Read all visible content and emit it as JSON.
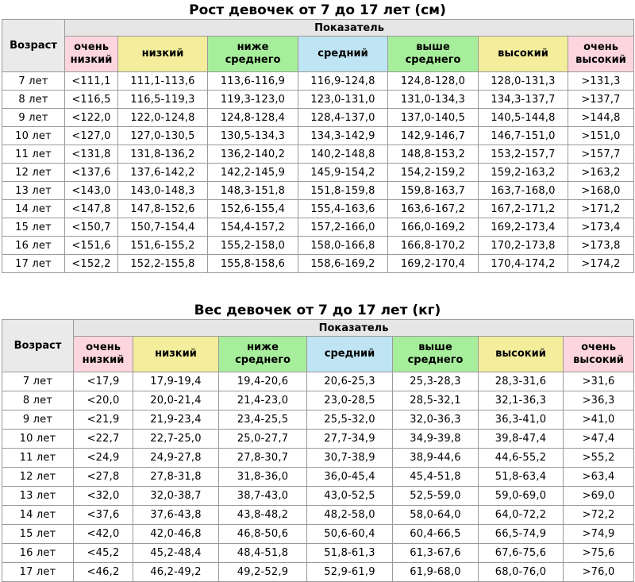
{
  "height_table": {
    "title": "Рост девочек от 7 до 17 лет (см)",
    "age_header": "Возраст",
    "group_header": "Показатель",
    "categories": [
      "очень низкий",
      "низкий",
      "ниже среднего",
      "средний",
      "выше среднего",
      "высокий",
      "очень высокий"
    ],
    "rows": [
      [
        "7 лет",
        "<111,1",
        "111,1-113,6",
        "113,6-116,9",
        "116,9-124,8",
        "124,8-128,0",
        "128,0-131,3",
        ">131,3"
      ],
      [
        "8 лет",
        "<116,5",
        "116,5-119,3",
        "119,3-123,0",
        "123,0-131,0",
        "131,0-134,3",
        "134,3-137,7",
        ">137,7"
      ],
      [
        "9 лет",
        "<122,0",
        "122,0-124,8",
        "124,8-128,4",
        "128,4-137,0",
        "137,0-140,5",
        "140,5-144,8",
        ">144,8"
      ],
      [
        "10 лет",
        "<127,0",
        "127,0-130,5",
        "130,5-134,3",
        "134,3-142,9",
        "142,9-146,7",
        "146,7-151,0",
        ">151,0"
      ],
      [
        "11 лет",
        "<131,8",
        "131,8-136,2",
        "136,2-140,2",
        "140,2-148,8",
        "148,8-153,2",
        "153,2-157,7",
        ">157,7"
      ],
      [
        "12 лет",
        "<137,6",
        "137,6-142,2",
        "142,2-145,9",
        "145,9-154,2",
        "154,2-159,2",
        "159,2-163,2",
        ">163,2"
      ],
      [
        "13 лет",
        "<143,0",
        "143,0-148,3",
        "148,3-151,8",
        "151,8-159,8",
        "159,8-163,7",
        "163,7-168,0",
        ">168,0"
      ],
      [
        "14 лет",
        "<147,8",
        "147,8-152,6",
        "152,6-155,4",
        "155,4-163,6",
        "163,6-167,2",
        "167,2-171,2",
        ">171,2"
      ],
      [
        "15 лет",
        "<150,7",
        "150,7-154,4",
        "154,4-157,2",
        "157,2-166,0",
        "166,0-169,2",
        "169,2-173,4",
        ">173,4"
      ],
      [
        "16 лет",
        "<151,6",
        "151,6-155,2",
        "155,2-158,0",
        "158,0-166,8",
        "166,8-170,2",
        "170,2-173,8",
        ">173,8"
      ],
      [
        "17 лет",
        "<152,2",
        "152,2-155,8",
        "155,8-158,6",
        "158,6-169,2",
        "169,2-170,4",
        "170,4-174,2",
        ">174,2"
      ]
    ]
  },
  "weight_table": {
    "title": "Вес девочек от 7 до 17 лет (кг)",
    "age_header": "Возраст",
    "group_header": "Показатель",
    "categories": [
      "очень низкий",
      "низкий",
      "ниже среднего",
      "средний",
      "выше среднего",
      "высокий",
      "очень высокий"
    ],
    "rows": [
      [
        "7 лет",
        "<17,9",
        "17,9-19,4",
        "19,4-20,6",
        "20,6-25,3",
        "25,3-28,3",
        "28,3-31,6",
        ">31,6"
      ],
      [
        "8 лет",
        "<20,0",
        "20,0-21,4",
        "21,4-23,0",
        "23,0-28,5",
        "28,5-32,1",
        "32,1-36,3",
        ">36,3"
      ],
      [
        "9 лет",
        "<21,9",
        "21,9-23,4",
        "23,4-25,5",
        "25,5-32,0",
        "32,0-36,3",
        "36,3-41,0",
        ">41,0"
      ],
      [
        "10 лет",
        "<22,7",
        "22,7-25,0",
        "25,0-27,7",
        "27,7-34,9",
        "34,9-39,8",
        "39,8-47,4",
        ">47,4"
      ],
      [
        "11 лет",
        "<24,9",
        "24,9-27,8",
        "27,8-30,7",
        "30,7-38,9",
        "38,9-44,6",
        "44,6-55,2",
        ">55,2"
      ],
      [
        "12 лет",
        "<27,8",
        "27,8-31,8",
        "31,8-36,0",
        "36,0-45,4",
        "45,4-51,8",
        "51,8-63,4",
        ">63,4"
      ],
      [
        "13 лет",
        "<32,0",
        "32,0-38,7",
        "38,7-43,0",
        "43,0-52,5",
        "52,5-59,0",
        "59,0-69,0",
        ">69,0"
      ],
      [
        "14 лет",
        "<37,6",
        "37,6-43,8",
        "43,8-48,2",
        "48,2-58,0",
        "58,0-64,0",
        "64,0-72,2",
        ">72,2"
      ],
      [
        "15 лет",
        "<42,0",
        "42,0-46,8",
        "46,8-50,6",
        "50,6-60,4",
        "60,4-66,5",
        "66,5-74,9",
        ">74,9"
      ],
      [
        "16 лет",
        "<45,2",
        "45,2-48,4",
        "48,4-51,8",
        "51,8-61,3",
        "61,3-67,6",
        "67,6-75,6",
        ">75,6"
      ],
      [
        "17 лет",
        "<46,2",
        "46,2-49,2",
        "49,2-52,9",
        "52,9-61,9",
        "61,9-68,0",
        "68,0-76,0",
        ">76,0"
      ]
    ]
  },
  "colors": {
    "very_low_and_very_high": "#fcd5df",
    "low_and_high": "#f3ed9c",
    "below_and_above_average": "#a7ee9c",
    "average": "#bfe4f3"
  }
}
